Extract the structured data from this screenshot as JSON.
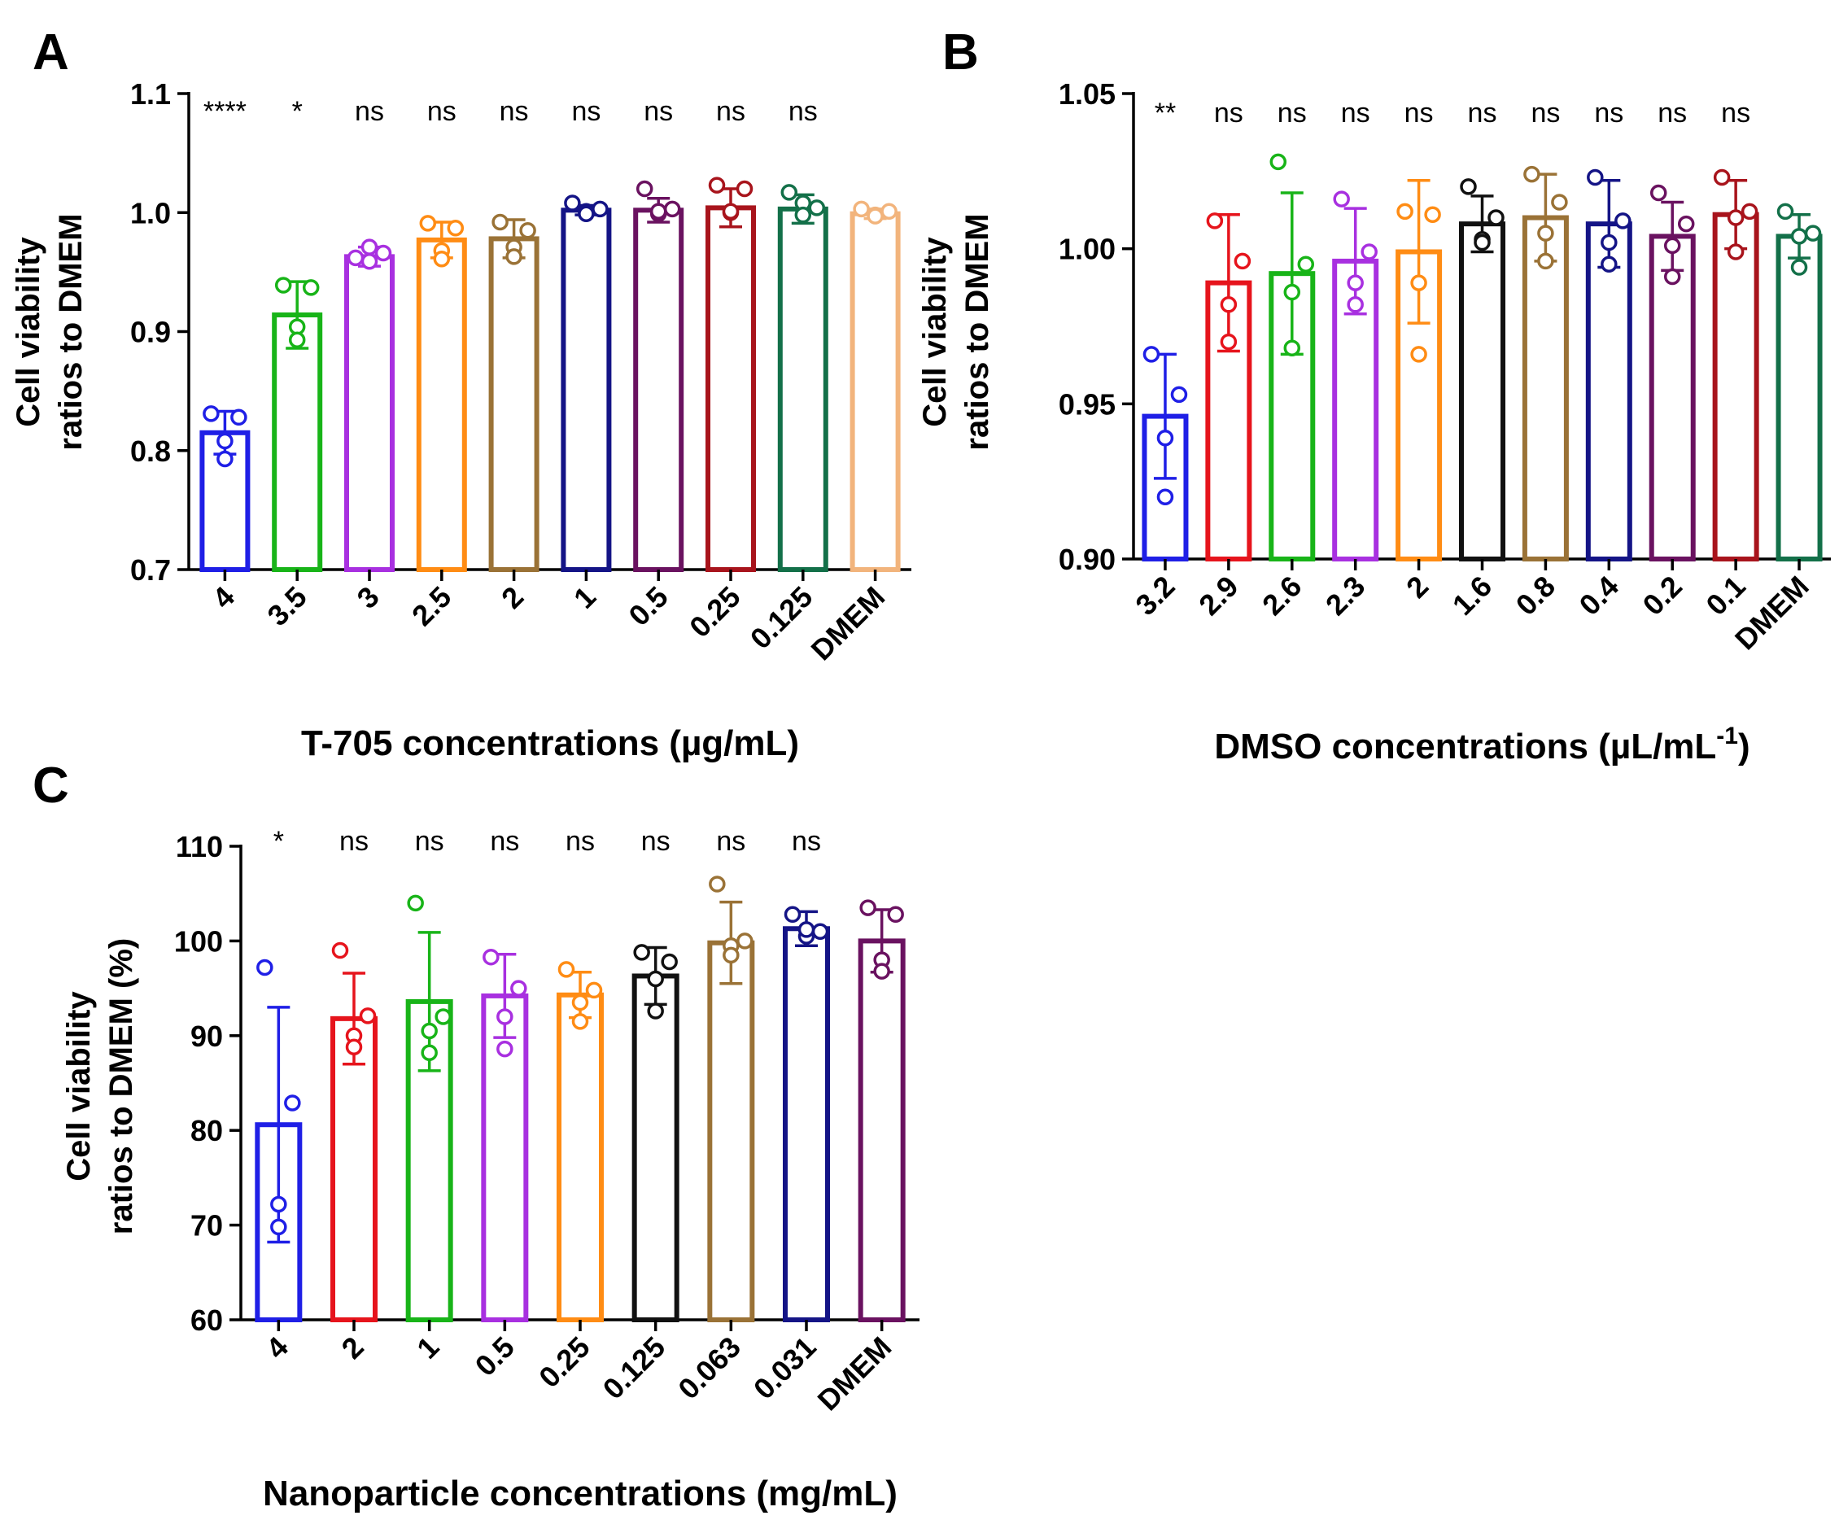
{
  "chart_data": [
    {
      "type": "bar",
      "panel_label": "A",
      "title": "",
      "xlabel": "T-705 concentrations (µg/mL)",
      "ylabel": [
        "Cell viability",
        "ratios to DMEM"
      ],
      "ylim": [
        0.7,
        1.1
      ],
      "yticks": [
        0.7,
        0.8,
        0.9,
        1.0,
        1.1
      ],
      "ytick_labels": [
        "0.7",
        "0.8",
        "0.9",
        "1.0",
        "1.1"
      ],
      "categories": [
        "4",
        "3.5",
        "3",
        "2.5",
        "2",
        "1",
        "0.5",
        "0.25",
        "0.125",
        "DMEM"
      ],
      "values": [
        0.815,
        0.914,
        0.963,
        0.977,
        0.978,
        1.002,
        1.002,
        1.004,
        1.003,
        0.999
      ],
      "errors": [
        0.018,
        0.028,
        0.008,
        0.015,
        0.016,
        0.004,
        0.01,
        0.016,
        0.012,
        0.004
      ],
      "points": [
        [
          0.831,
          0.828,
          0.808,
          0.793
        ],
        [
          0.939,
          0.937,
          0.904,
          0.893
        ],
        [
          0.962,
          0.966,
          0.971,
          0.959
        ],
        [
          0.991,
          0.987,
          0.968,
          0.961
        ],
        [
          0.992,
          0.985,
          0.971,
          0.963
        ],
        [
          1.008,
          1.003,
          1.001,
          0.999
        ],
        [
          1.02,
          1.003,
          0.999,
          1.001
        ],
        [
          1.023,
          1.02,
          1.0,
          1.001
        ],
        [
          1.017,
          1.004,
          1.008,
          0.998
        ],
        [
          1.003,
          1.001,
          0.998,
          0.997
        ]
      ],
      "significance": [
        "****",
        "*",
        "ns",
        "ns",
        "ns",
        "ns",
        "ns",
        "ns",
        "ns",
        ""
      ],
      "colors": [
        "#1f1fe6",
        "#18b418",
        "#a830e0",
        "#ff8c14",
        "#9a7236",
        "#141486",
        "#6a1260",
        "#a8141c",
        "#137049",
        "#f2b47c"
      ]
    },
    {
      "type": "bar",
      "panel_label": "B",
      "title": "",
      "xlabel": "DMSO concentrations (µL/mL",
      "xlabel_sup": "-1",
      "xlabel_close": ")",
      "ylabel": [
        "Cell viability",
        "ratios to DMEM"
      ],
      "ylim": [
        0.9,
        1.05
      ],
      "yticks": [
        0.9,
        0.95,
        1.0,
        1.05
      ],
      "ytick_labels": [
        "0.90",
        "0.95",
        "1.00",
        "1.05"
      ],
      "categories": [
        "3.2",
        "2.9",
        "2.6",
        "2.3",
        "2",
        "1.6",
        "0.8",
        "0.4",
        "0.2",
        "0.1",
        "DMEM"
      ],
      "values": [
        0.946,
        0.989,
        0.992,
        0.996,
        0.999,
        1.008,
        1.01,
        1.008,
        1.004,
        1.011,
        1.004
      ],
      "errors": [
        0.02,
        0.022,
        0.026,
        0.017,
        0.023,
        0.009,
        0.014,
        0.014,
        0.011,
        0.011,
        0.007
      ],
      "points": [
        [
          0.966,
          0.953,
          0.939,
          0.92
        ],
        [
          1.009,
          0.996,
          0.982,
          0.97
        ],
        [
          1.028,
          0.995,
          0.986,
          0.968
        ],
        [
          1.016,
          0.999,
          0.989,
          0.982
        ],
        [
          1.012,
          1.011,
          0.989,
          0.966
        ],
        [
          1.02,
          1.01,
          1.003,
          1.002
        ],
        [
          1.024,
          1.015,
          1.005,
          0.996
        ],
        [
          1.023,
          1.009,
          1.002,
          0.995
        ],
        [
          1.018,
          1.008,
          1.001,
          0.991
        ],
        [
          1.023,
          1.012,
          1.01,
          0.999
        ],
        [
          1.012,
          1.005,
          1.004,
          0.994
        ]
      ],
      "significance": [
        "**",
        "ns",
        "ns",
        "ns",
        "ns",
        "ns",
        "ns",
        "ns",
        "ns",
        "ns",
        ""
      ],
      "colors": [
        "#1f1fe6",
        "#e6141c",
        "#18b418",
        "#a830e0",
        "#ff8c14",
        "#111111",
        "#9a7236",
        "#141486",
        "#6a1260",
        "#a8141c",
        "#137049"
      ]
    },
    {
      "type": "bar",
      "panel_label": "C",
      "title": "",
      "xlabel": "Nanoparticle concentrations (mg/mL)",
      "ylabel": [
        "Cell viability",
        "ratios to DMEM (%)"
      ],
      "ylim": [
        60,
        110
      ],
      "yticks": [
        60,
        70,
        80,
        90,
        100,
        110
      ],
      "ytick_labels": [
        "60",
        "70",
        "80",
        "90",
        "100",
        "110"
      ],
      "categories": [
        "4",
        "2",
        "1",
        "0.5",
        "0.25",
        "0.125",
        "0.063",
        "0.031",
        "DMEM"
      ],
      "values": [
        80.6,
        91.8,
        93.6,
        94.2,
        94.3,
        96.3,
        99.8,
        101.3,
        100.0
      ],
      "errors": [
        12.4,
        4.8,
        7.3,
        4.4,
        2.4,
        3.0,
        4.3,
        1.8,
        3.3
      ],
      "points": [
        [
          97.2,
          82.9,
          72.2,
          69.8
        ],
        [
          99.0,
          92.1,
          90.0,
          88.8
        ],
        [
          104.0,
          92.0,
          90.5,
          88.2
        ],
        [
          98.3,
          95.0,
          92.0,
          88.6
        ],
        [
          97.0,
          94.8,
          93.5,
          91.5
        ],
        [
          98.8,
          97.8,
          96.0,
          92.6
        ],
        [
          106.0,
          100.0,
          99.5,
          98.5
        ],
        [
          102.8,
          101.0,
          100.5,
          101.2
        ],
        [
          103.5,
          102.8,
          98.0,
          96.8
        ]
      ],
      "significance": [
        "*",
        "ns",
        "ns",
        "ns",
        "ns",
        "ns",
        "ns",
        "ns",
        ""
      ],
      "colors": [
        "#1f1fe6",
        "#e6141c",
        "#18b418",
        "#a830e0",
        "#ff8c14",
        "#111111",
        "#9a7236",
        "#141486",
        "#6a1260"
      ]
    }
  ]
}
